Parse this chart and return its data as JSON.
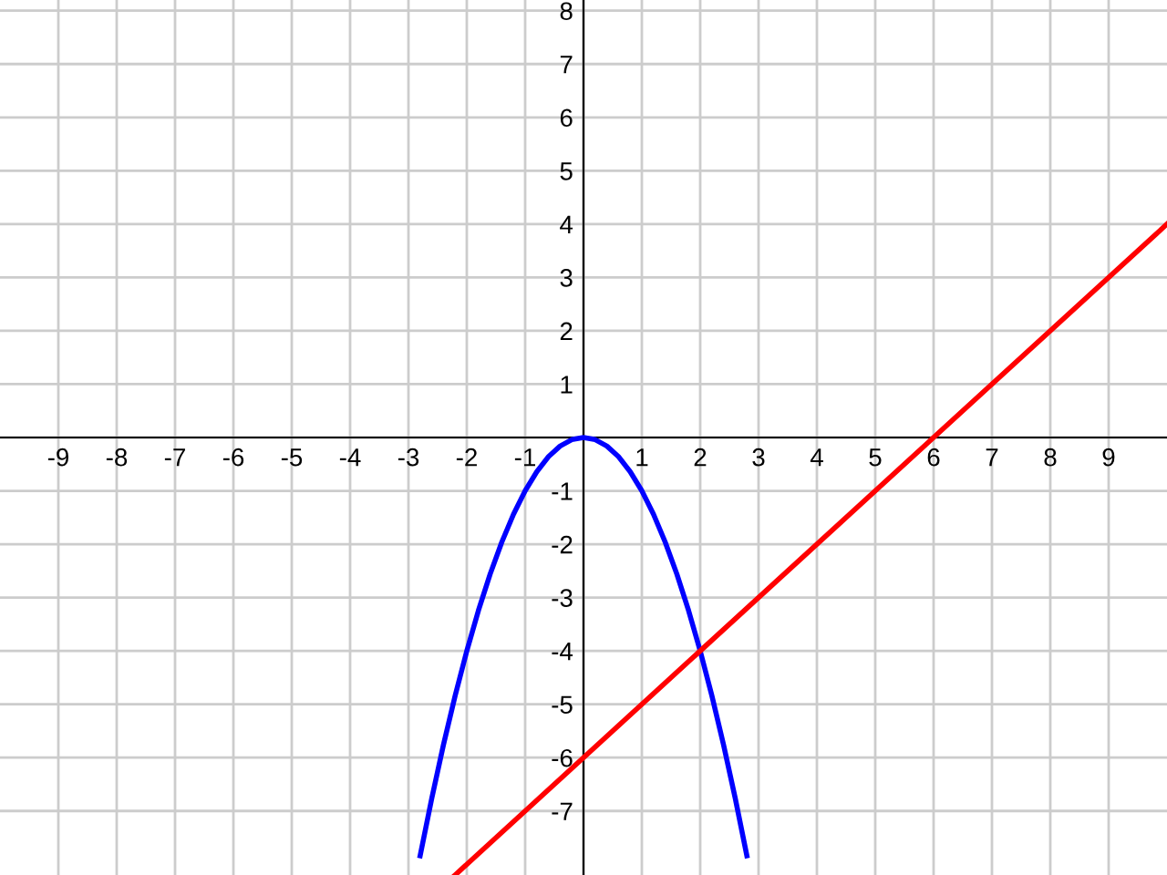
{
  "chart_data": {
    "type": "line",
    "series": [
      {
        "color": "#0000ff",
        "x": [
          -2.8,
          -2.6,
          -2.4,
          -2.2,
          -2.0,
          -1.8,
          -1.6,
          -1.4,
          -1.2,
          -1.0,
          -0.8,
          -0.6,
          -0.4,
          -0.2,
          0,
          0.2,
          0.4,
          0.6,
          0.8,
          1.0,
          1.2,
          1.4,
          1.6,
          1.8,
          2.0,
          2.2,
          2.4,
          2.6,
          2.8
        ],
        "values": [
          -7.84,
          -6.76,
          -5.76,
          -4.84,
          -4,
          -3.24,
          -2.56,
          -1.96,
          -1.44,
          -1,
          -0.64,
          -0.36,
          -0.16,
          -0.04,
          0,
          -0.04,
          -0.16,
          -0.36,
          -0.64,
          -1,
          -1.44,
          -1.96,
          -2.56,
          -3.24,
          -4,
          -4.84,
          -5.76,
          -6.76,
          -7.84
        ]
      },
      {
        "color": "#ff0000",
        "x": [
          -2.2,
          10
        ],
        "values": [
          -8.2,
          4
        ]
      }
    ],
    "xlim": [
      -10,
      10
    ],
    "ylim": [
      -8.2,
      8.2
    ],
    "xticks": [
      {
        "value": -9,
        "label": "-9"
      },
      {
        "value": -8,
        "label": "-8"
      },
      {
        "value": -7,
        "label": "-7"
      },
      {
        "value": -6,
        "label": "-6"
      },
      {
        "value": -5,
        "label": "-5"
      },
      {
        "value": -4,
        "label": "-4"
      },
      {
        "value": -3,
        "label": "-3"
      },
      {
        "value": -2,
        "label": "-2"
      },
      {
        "value": -1,
        "label": "-1"
      },
      1,
      2,
      3,
      4,
      5,
      6,
      7,
      8,
      9
    ],
    "yticks": [
      {
        "value": -7,
        "label": "-7"
      },
      {
        "value": -6,
        "label": "-6"
      },
      {
        "value": -5,
        "label": "-5"
      },
      {
        "value": -4,
        "label": "-4"
      },
      {
        "value": -3,
        "label": "-3"
      },
      {
        "value": -2,
        "label": "-2"
      },
      {
        "value": -1,
        "label": "-1"
      },
      1,
      2,
      3,
      4,
      5,
      6,
      7,
      8
    ],
    "grid": true,
    "marker": "none",
    "line_style": "solid"
  }
}
